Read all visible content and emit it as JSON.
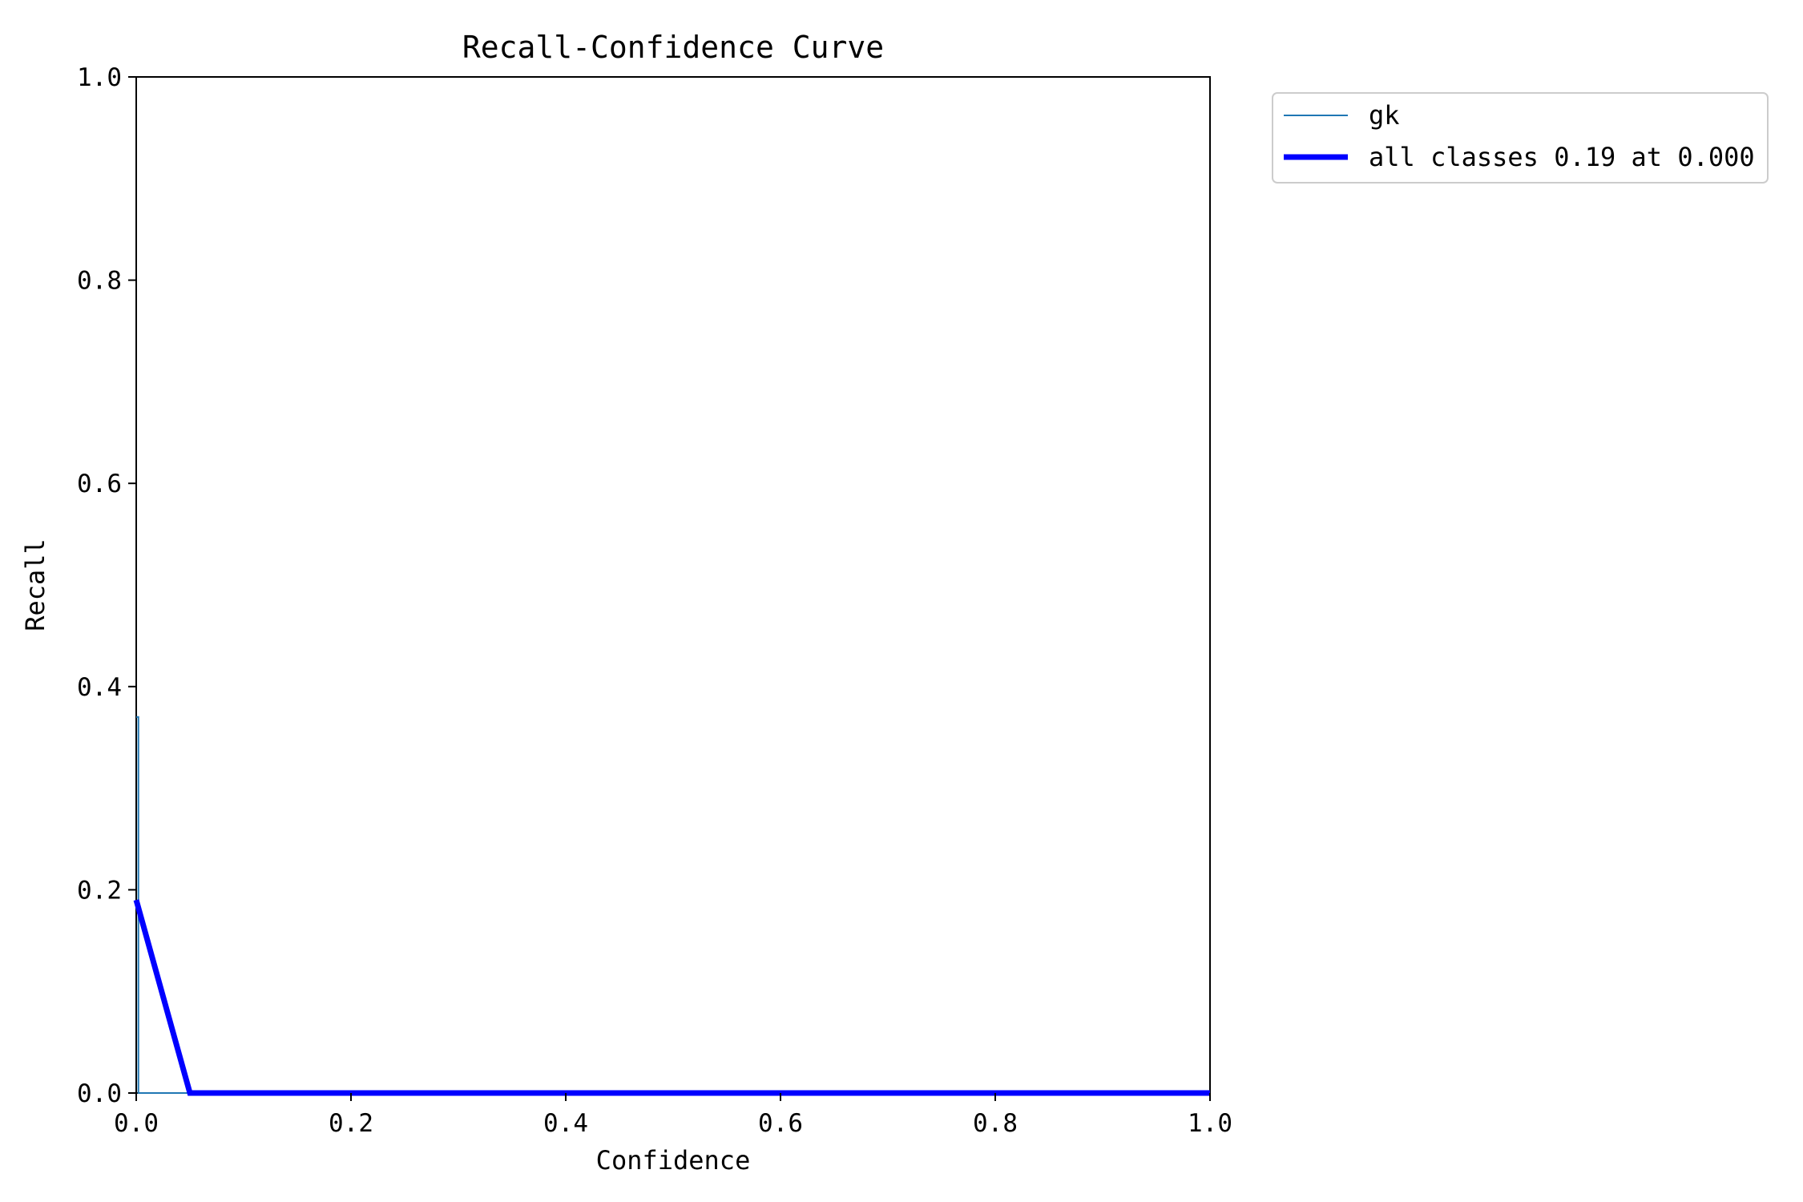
{
  "chart_data": {
    "type": "line",
    "title": "Recall-Confidence Curve",
    "xlabel": "Confidence",
    "ylabel": "Recall",
    "xlim": [
      0,
      1
    ],
    "ylim": [
      0,
      1
    ],
    "xticks": [
      "0.0",
      "0.2",
      "0.4",
      "0.6",
      "0.8",
      "1.0"
    ],
    "yticks": [
      "0.0",
      "0.2",
      "0.4",
      "0.6",
      "0.8",
      "1.0"
    ],
    "grid": false,
    "legend_position": "outside-top-right",
    "series": [
      {
        "name": "gk",
        "color": "#1f77b4",
        "x": [
          0.0,
          0.001,
          0.002,
          0.002,
          1.0
        ],
        "y": [
          0.37,
          0.37,
          0.37,
          0.0,
          0.0
        ]
      },
      {
        "name": "all classes 0.19 at 0.000",
        "color": "#0000ff",
        "x": [
          0.0,
          0.05,
          1.0
        ],
        "y": [
          0.19,
          0.0,
          0.0
        ]
      }
    ]
  }
}
